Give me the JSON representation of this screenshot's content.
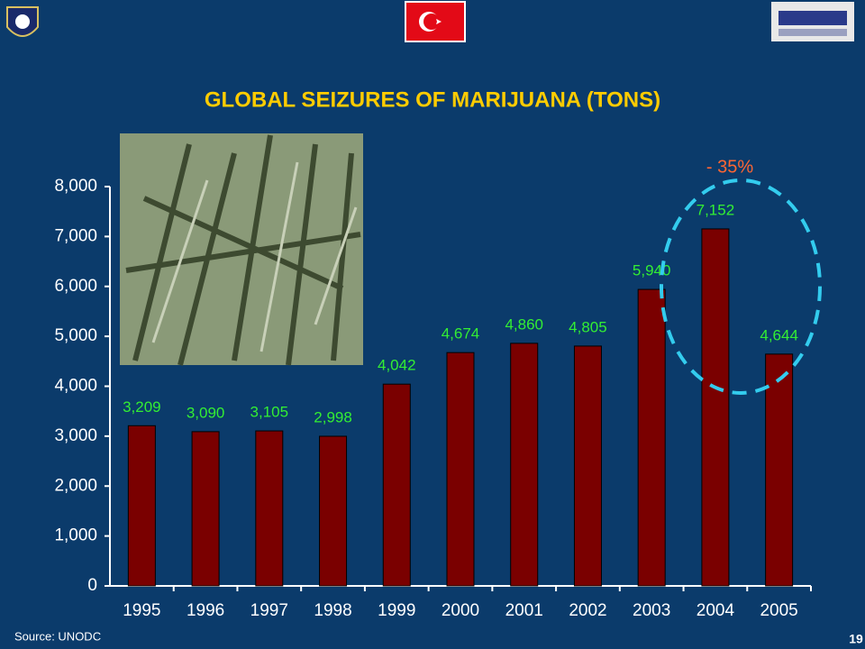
{
  "chart_data": {
    "type": "bar",
    "title": "GLOBAL SEIZURES OF MARIJUANA (TONS)",
    "categories": [
      "1995",
      "1996",
      "1997",
      "1998",
      "1999",
      "2000",
      "2001",
      "2002",
      "2003",
      "2004",
      "2005"
    ],
    "values": [
      3209,
      3090,
      3105,
      2998,
      4042,
      4674,
      4860,
      4805,
      5940,
      7152,
      4644
    ],
    "value_labels": [
      "3,209",
      "3,090",
      "3,105",
      "2,998",
      "4,042",
      "4,674",
      "4,860",
      "4,805",
      "5,940",
      "7,152",
      "4,644"
    ],
    "color": "#7a0000",
    "label_color": "#33ee33",
    "ylim": [
      0,
      8000
    ],
    "yticks": [
      0,
      {
        "value": 1000,
        "label": "1,000"
      },
      {
        "value": 2000,
        "label": "2,000"
      },
      {
        "value": 3000,
        "label": "3,000"
      },
      {
        "value": 4000,
        "label": "4,000"
      },
      {
        "value": 5000,
        "label": "5,000"
      },
      {
        "value": 6000,
        "label": "6,000"
      },
      {
        "value": 7000,
        "label": "7,000"
      },
      {
        "value": 8000,
        "label": "8,000"
      }
    ],
    "grid": false,
    "annotation": "- 35%",
    "source": "Source: UNODC",
    "page_number": "19"
  }
}
